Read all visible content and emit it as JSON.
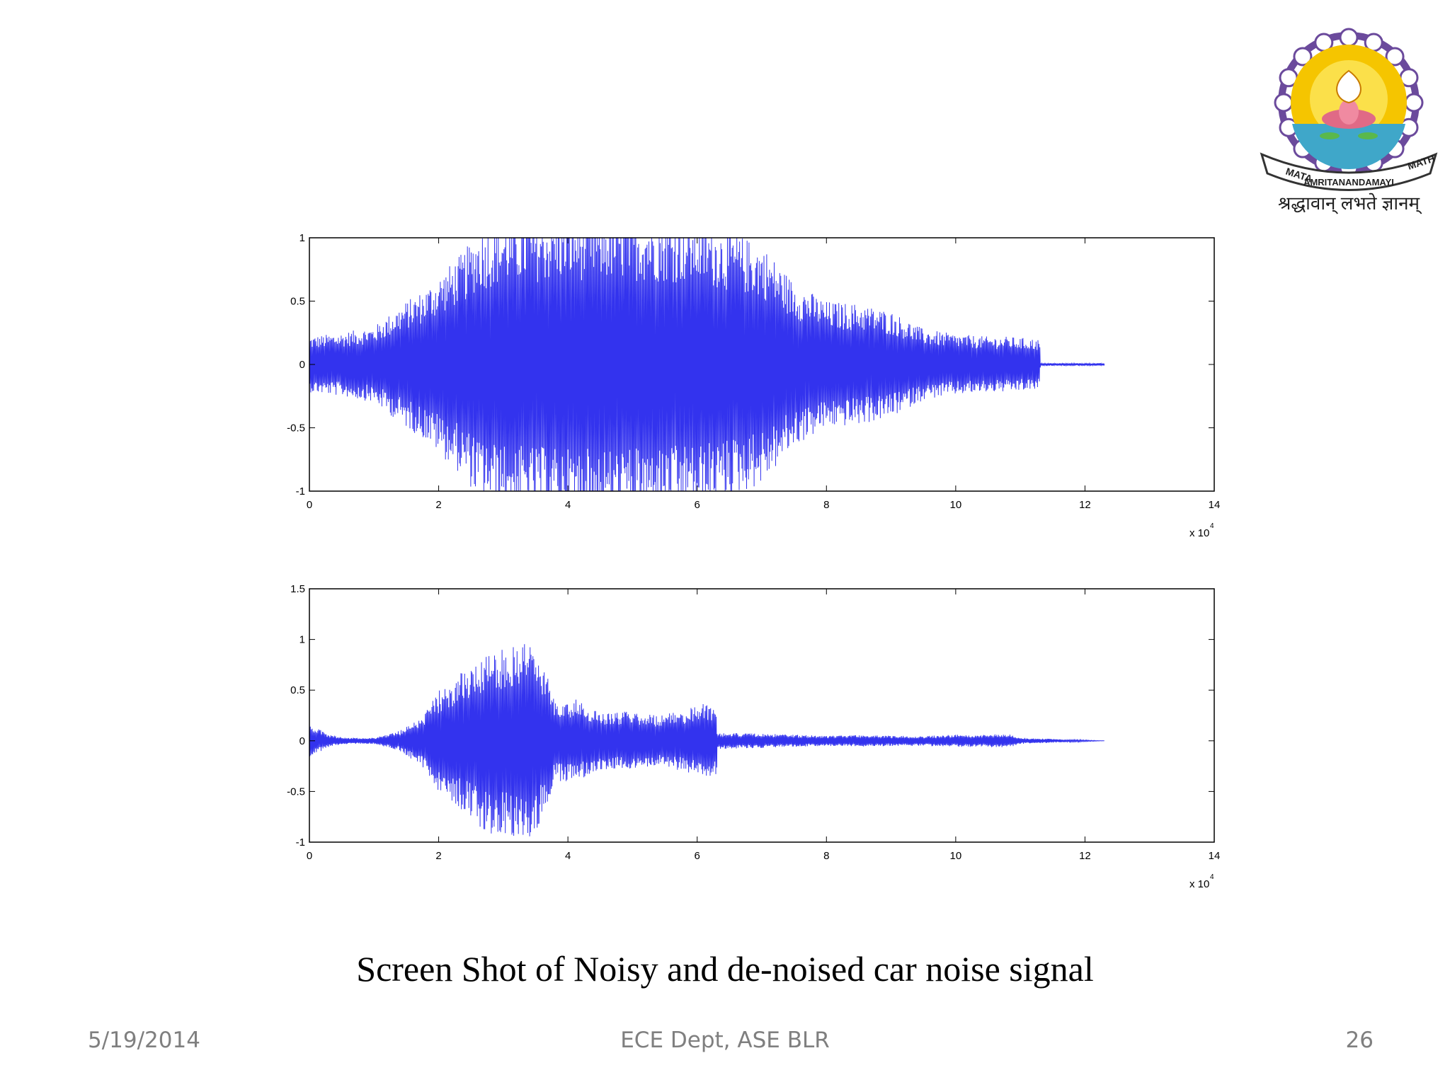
{
  "slide": {
    "caption": "Screen Shot of Noisy and de-noised car noise signal",
    "footer_date": "5/19/2014",
    "footer_center": "ECE Dept, ASE BLR",
    "page_number": "26"
  },
  "logo": {
    "ribbon_words": [
      "MATA",
      "AMRITANANDAMAYI",
      "MATH"
    ],
    "motto": "श्रद्धावान् लभते ज्ञानम्",
    "colors": {
      "ring": "#6b4a9c",
      "sun": "#f5c500",
      "sun_rays": "#e8a100",
      "water": "#3fa7c9",
      "lotus": "#e06a86"
    }
  },
  "chart_data": [
    {
      "type": "line",
      "xlim": [
        0,
        14
      ],
      "ylim": [
        -1,
        1
      ],
      "x_multiplier": "x 10",
      "x_multiplier_exp": "4",
      "xticks": [
        "0",
        "2",
        "4",
        "6",
        "8",
        "10",
        "12",
        "14"
      ],
      "yticks": [
        "-1",
        "-0.5",
        "0",
        "0.5",
        "1"
      ],
      "series": [
        {
          "color": "#3333ee",
          "envelope_x": [
            0,
            0.5,
            1,
            1.5,
            1.8,
            2.1,
            2.4,
            2.6,
            3,
            4,
            5,
            6,
            6.5,
            7,
            7.5,
            8,
            8.5,
            9,
            9.5,
            10,
            10.5,
            10.8,
            11.3,
            11.31,
            12.3
          ],
          "envelope_amp": [
            0.22,
            0.25,
            0.3,
            0.5,
            0.6,
            0.75,
            0.9,
            1.05,
            1.15,
            1.2,
            1.2,
            1.15,
            1.05,
            0.95,
            0.65,
            0.5,
            0.48,
            0.42,
            0.28,
            0.24,
            0.22,
            0.22,
            0.2,
            0.01,
            0.01
          ]
        }
      ]
    },
    {
      "type": "line",
      "xlim": [
        0,
        14
      ],
      "ylim": [
        -1,
        1.5
      ],
      "x_multiplier": "x 10",
      "x_multiplier_exp": "4",
      "xticks": [
        "0",
        "2",
        "4",
        "6",
        "8",
        "10",
        "12",
        "14"
      ],
      "yticks": [
        "-1",
        "-0.5",
        "0",
        "0.5",
        "1",
        "1.5"
      ],
      "series": [
        {
          "color": "#3333ee",
          "envelope_x": [
            0,
            0.3,
            0.6,
            1.0,
            1.4,
            1.8,
            2.0,
            2.4,
            2.8,
            3.0,
            3.4,
            3.7,
            3.8,
            4.1,
            4.4,
            4.7,
            5.0,
            5.4,
            5.8,
            6.1,
            6.3,
            6.31,
            7,
            8,
            8.5,
            9,
            9.5,
            10,
            10.5,
            10.8,
            11,
            12.3
          ],
          "envelope_amp": [
            0.17,
            0.06,
            0.03,
            0.03,
            0.1,
            0.28,
            0.5,
            0.7,
            0.95,
            0.9,
            1.05,
            0.6,
            0.4,
            0.42,
            0.3,
            0.28,
            0.3,
            0.25,
            0.3,
            0.38,
            0.35,
            0.08,
            0.07,
            0.05,
            0.06,
            0.05,
            0.05,
            0.06,
            0.06,
            0.07,
            0.03,
            0.0
          ]
        }
      ]
    }
  ]
}
